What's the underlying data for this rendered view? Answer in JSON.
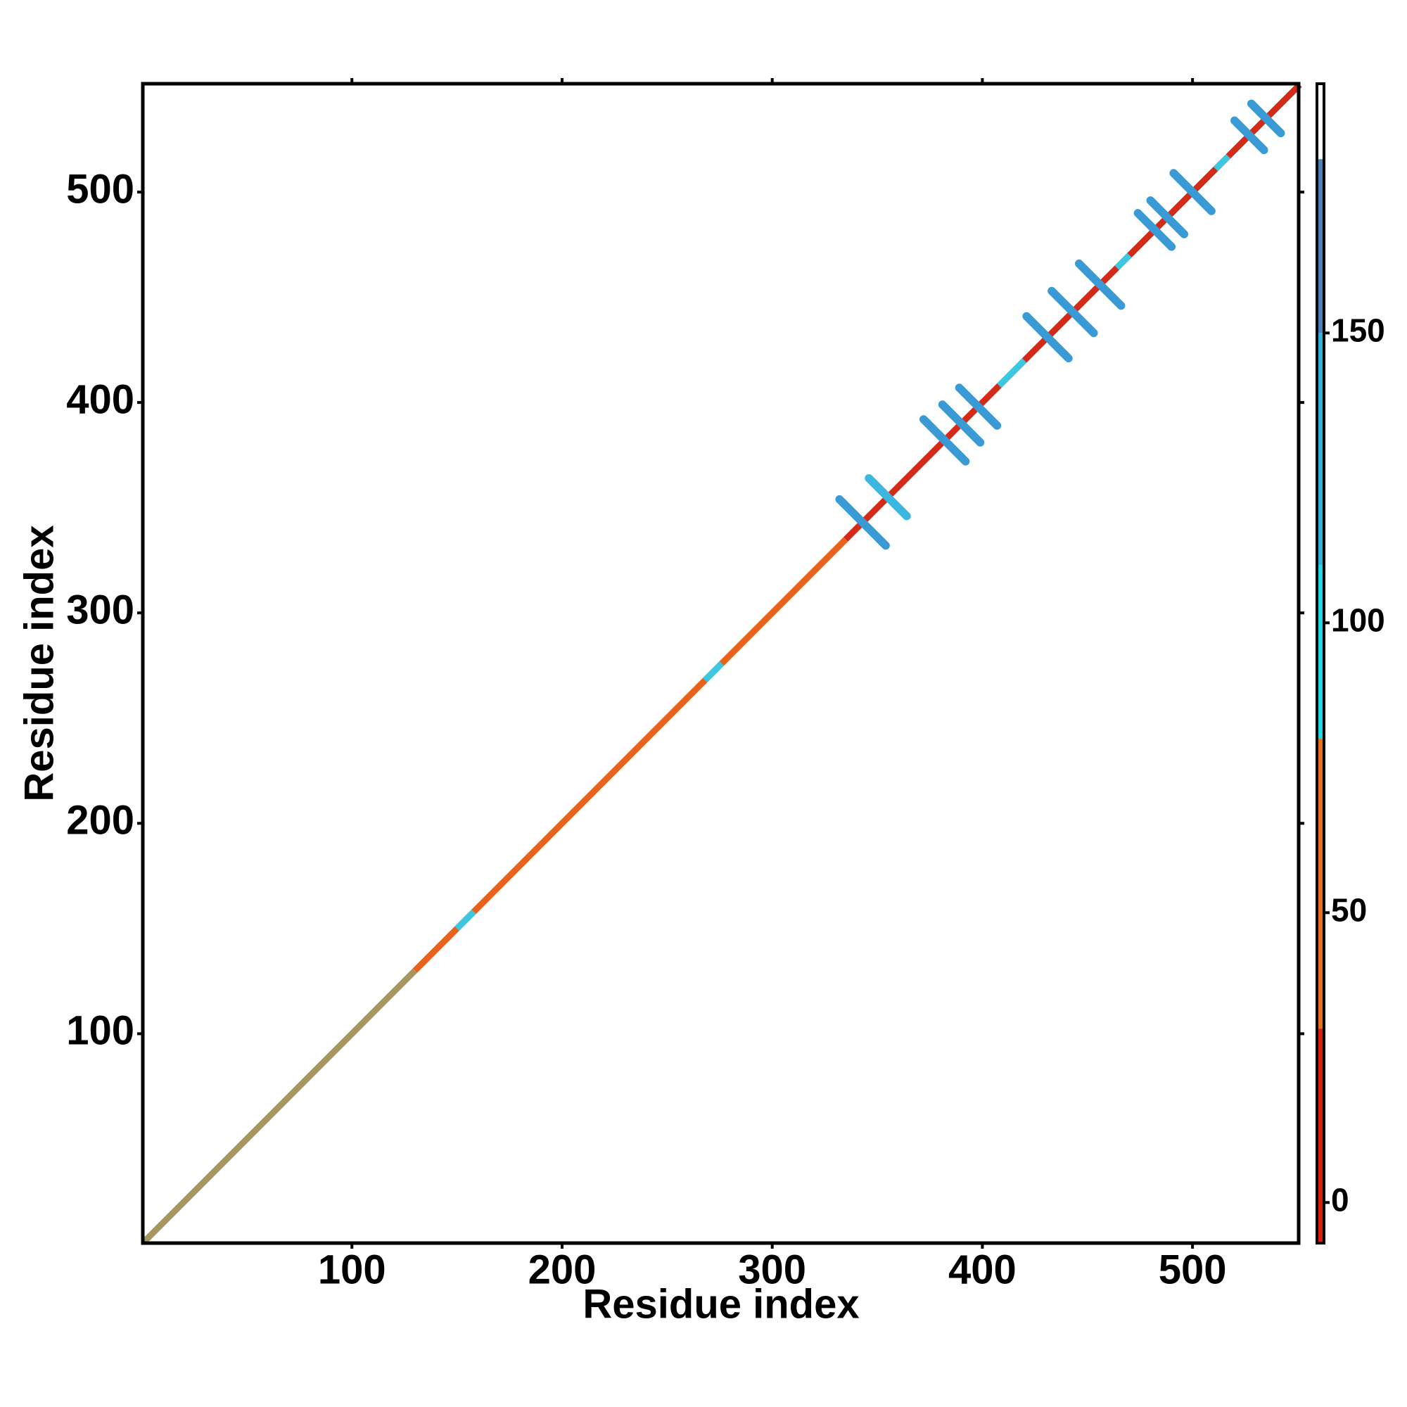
{
  "chart_data": {
    "type": "contact-map",
    "x_label": "Residue index",
    "y_label": "Residue index",
    "xlim": [
      0.5,
      550.5
    ],
    "ylim": [
      0.5,
      551.5
    ],
    "xticks": [
      100,
      200,
      300,
      400,
      500
    ],
    "yticks": [
      100,
      200,
      300,
      400,
      500
    ],
    "band_width": 3,
    "bands": [
      {
        "from": 1,
        "to": 130,
        "color": "#a89660"
      },
      {
        "from": 130,
        "to": 335,
        "color": "#e8621c"
      },
      {
        "from": 335,
        "to": 551,
        "color": "#d42a18"
      },
      {
        "from": 150,
        "to": 158,
        "color": "#3cc8e0"
      },
      {
        "from": 268,
        "to": 276,
        "color": "#3cc8e0"
      },
      {
        "from": 408,
        "to": 420,
        "color": "#3cc8e0"
      },
      {
        "from": 464,
        "to": 470,
        "color": "#3cc8e0"
      },
      {
        "from": 511,
        "to": 517,
        "color": "#3cc8e0"
      }
    ],
    "crosses": [
      {
        "center": 343,
        "half_length": 11,
        "color": "#3a9ad6"
      },
      {
        "center": 355,
        "half_length": 9,
        "color": "#3cb8e0"
      },
      {
        "center": 382,
        "half_length": 10,
        "color": "#3a9ad6"
      },
      {
        "center": 390,
        "half_length": 9,
        "color": "#3a9ad6"
      },
      {
        "center": 398,
        "half_length": 9,
        "color": "#3a9ad6"
      },
      {
        "center": 431,
        "half_length": 10,
        "color": "#3a9ad6"
      },
      {
        "center": 443,
        "half_length": 10,
        "color": "#3a9ad6"
      },
      {
        "center": 456,
        "half_length": 10,
        "color": "#3a9ad6"
      },
      {
        "center": 482,
        "half_length": 8,
        "color": "#3a9ad6"
      },
      {
        "center": 488,
        "half_length": 8,
        "color": "#3a9ad6"
      },
      {
        "center": 500,
        "half_length": 9,
        "color": "#3a9ad6"
      },
      {
        "center": 527,
        "half_length": 7,
        "color": "#3a9ad6"
      },
      {
        "center": 535,
        "half_length": 7,
        "color": "#3a9ad6"
      }
    ],
    "colorbar": {
      "lim": [
        -7,
        193
      ],
      "ticks": [
        0,
        50,
        100,
        150
      ],
      "segments": [
        {
          "from": -7,
          "to": 30,
          "color": "#d81c10"
        },
        {
          "from": 30,
          "to": 80,
          "color": "#e8701c"
        },
        {
          "from": 80,
          "to": 110,
          "color": "#20d8e0"
        },
        {
          "from": 110,
          "to": 150,
          "color": "#30b0d8"
        },
        {
          "from": 150,
          "to": 180,
          "color": "#4a80b8"
        },
        {
          "from": 180,
          "to": 193,
          "color": "#ffffff"
        }
      ]
    }
  }
}
